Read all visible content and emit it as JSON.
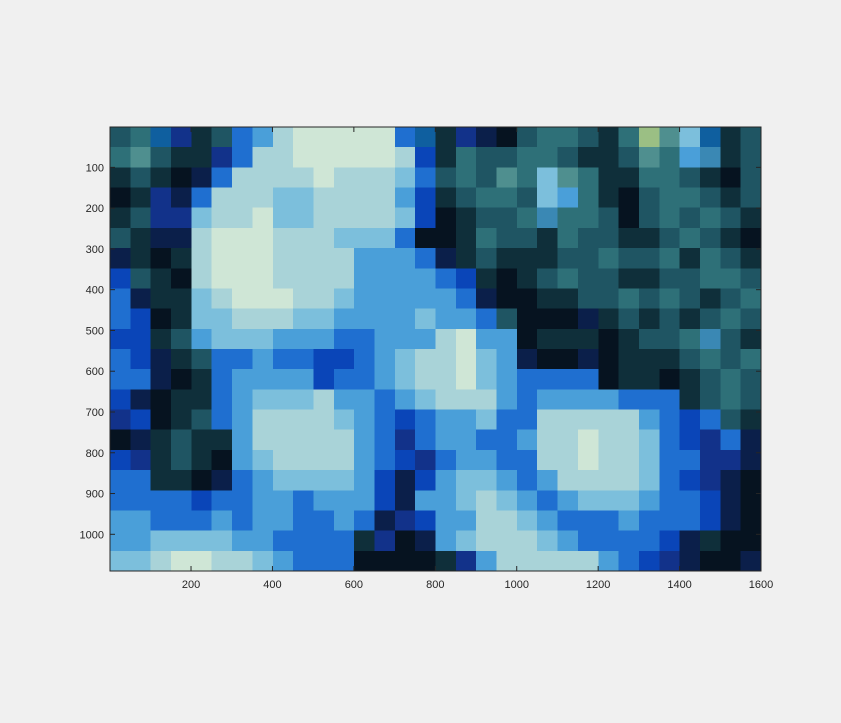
{
  "chart_data": {
    "type": "heatmap",
    "title": "",
    "xlabel": "",
    "ylabel": "",
    "xlim": [
      1,
      1600
    ],
    "ylim": [
      1,
      1090
    ],
    "y_direction": "reverse",
    "x_ticks": [
      200,
      400,
      600,
      800,
      1000,
      1200,
      1400,
      1600
    ],
    "y_ticks": [
      100,
      200,
      300,
      400,
      500,
      600,
      700,
      800,
      900,
      1000
    ],
    "grid": false,
    "legend": "none",
    "image": {
      "width": 1600,
      "height": 1090,
      "cols": 32,
      "rows": 22,
      "description_of_content": null,
      "palette": {
        "A": "#cfe6d6",
        "B": "#a9d3d8",
        "C": "#7cbfdc",
        "D": "#4a9fd9",
        "E": "#1f6fd0",
        "F": "#0a45b8",
        "G": "#12328a",
        "H": "#0b1f4a",
        "I": "#061320",
        "J": "#0f2f3a",
        "K": "#1f5563",
        "L": "#2e7078",
        "M": "#4f8f8f",
        "N": "#9bbf84",
        "O": "#3a88b4",
        "P": "#0f5f9f"
      },
      "pixels": [
        "KLPGJKEDBAAAAAEPJGHIKLLKJLNMCPJK",
        "LMKJJGEBBAAAAABFJLKKLLKJJKMLDOJK",
        "JKJIHEBBBBABBBCEKLKMLCMLJJLLKJIK",
        "IJGHEBBBCCBBBBDFJKLLKCDLJIKLLKJK",
        "JKGGCBBACCBBBBCFIJKKLOLLKIKLKLKJ",
        "KJHHBAAABBBCCCEIIJLKKJLKKJJKLKJI",
        "HJIJBAAABBBBDDDEHJKJJJKKLKKLJLKJ",
        "FKJIBAAABBBBDDDDEFJIJKLKKJJKKLLK",
        "EHJJCBAAABBCDDDDDEHIIJJKKLKLKJKL",
        "EFIJCCBBBCCDDDDCDDEKIIIHJKJKJKLK",
        "FFJKDCCCDDDEEDDDBADDIJJJIJKKLOKJ",
        "EFHJKEEDEEFFEDCBBACDHIIHIJJJKLKL",
        "EEHIJEDDDDFEEDCBBACDEEEEIJJIJKLK",
        "FHIJJEDCCCBDDEDCBBBDEDDDDEEEJKLK",
        "GFIJKEDBBBBCDEFEDDCEEBBBBBDEFEKJ",
        "IHJKJJDBBBBBDEGEDDEEDBBABBCEFGEH",
        "FGJKJIDCBBBBDEFGEDDEEBBABBCEEGGH",
        "EEJJIHEDCCCCDFHFDCCDEDBBBBCEFGHI",
        "EEEEFEEDDEDDDFHDDCBCDEDCCCDEEFHI",
        "DDEEEDEDDEEDEHGFDDBBCDEEEDEEEFHI",
        "DDCCCCDDEEEEJGIHDCBBBCDEEEEFHJII",
        "CCBAABBCDEEEIIIIJGDBBBBBDEFGHIIH"
      ]
    }
  }
}
